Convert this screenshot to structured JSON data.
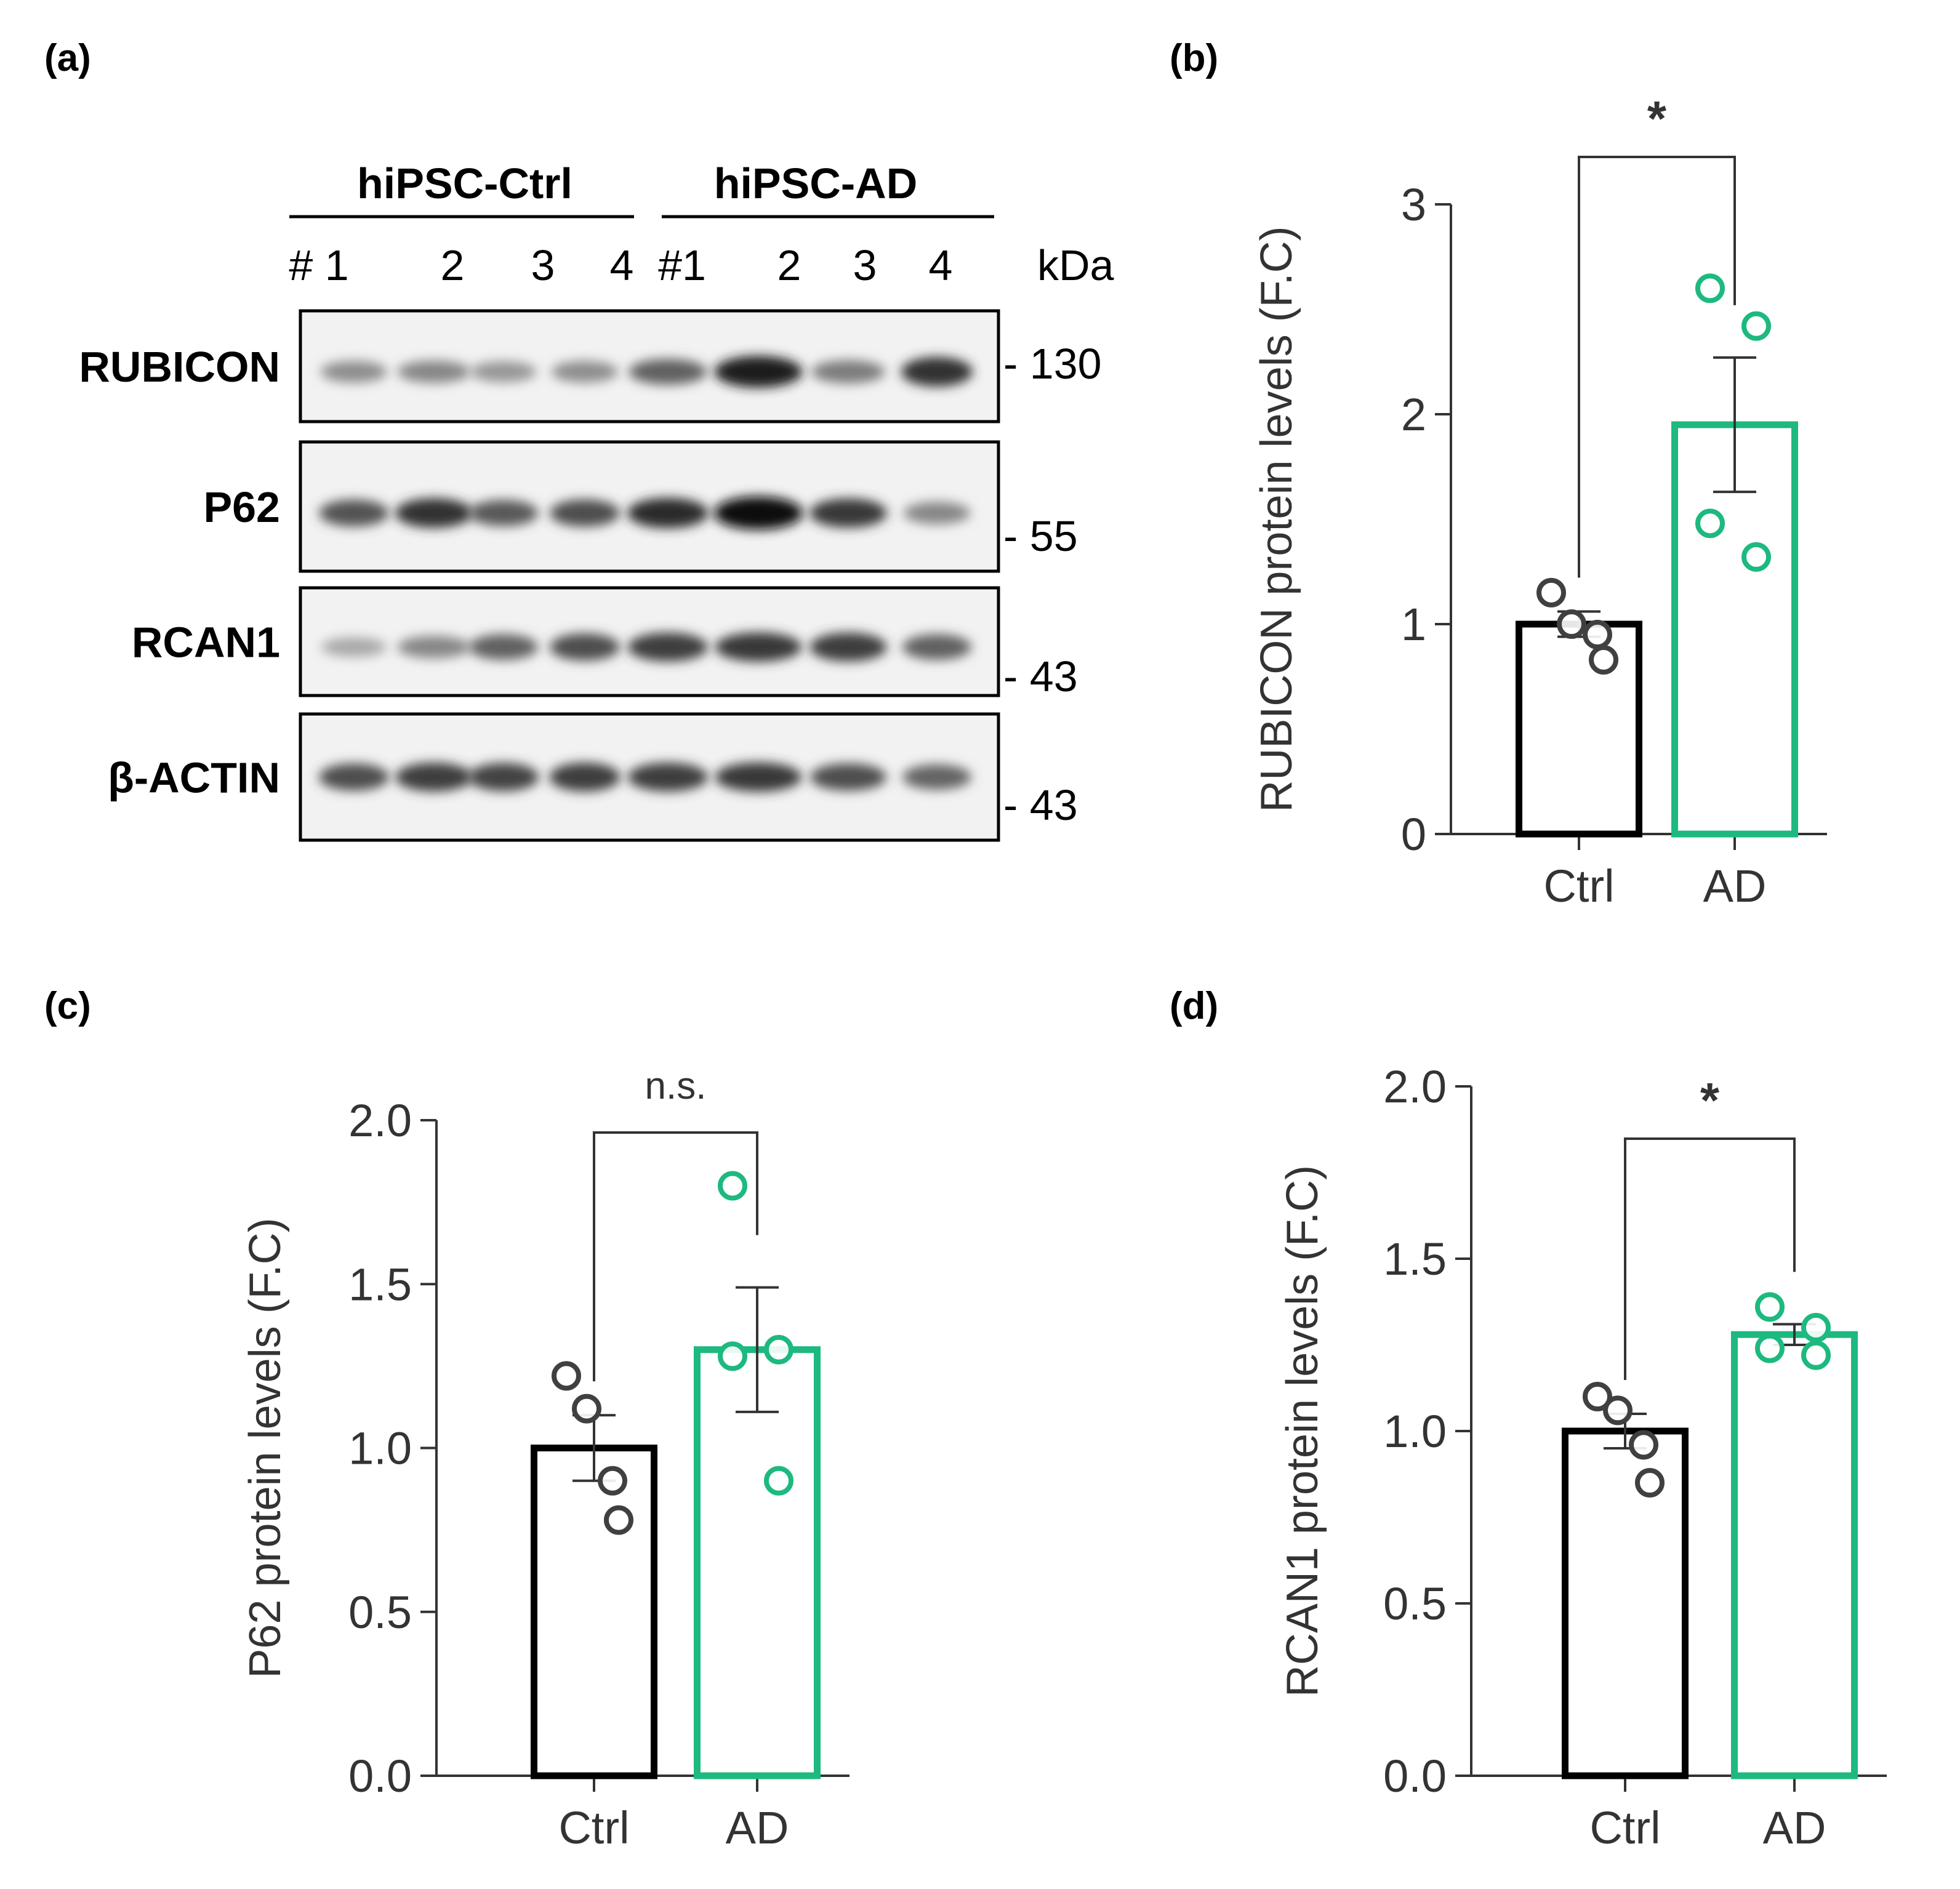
{
  "panel_labels": [
    "(a)",
    "(b)",
    "(c)",
    "(d)"
  ],
  "blot": {
    "groups": [
      "hiPSC-Ctrl",
      "hiPSC-AD"
    ],
    "lane_labels": [
      "# 1",
      "2",
      "3",
      "4",
      "#1",
      "2",
      "3",
      "4"
    ],
    "kda_label": "kDa",
    "proteins": [
      {
        "name": "RUBICON",
        "marker": "- 130",
        "intensity": [
          0.42,
          0.45,
          0.38,
          0.42,
          0.62,
          0.92,
          0.5,
          0.82
        ]
      },
      {
        "name": "P62",
        "marker": "- 55",
        "intensity": [
          0.68,
          0.82,
          0.65,
          0.7,
          0.85,
          1.0,
          0.8,
          0.45
        ]
      },
      {
        "name": "RCAN1",
        "marker": "- 43",
        "intensity": [
          0.3,
          0.45,
          0.62,
          0.7,
          0.78,
          0.8,
          0.78,
          0.62
        ]
      },
      {
        "name": "β-ACTIN",
        "marker": "- 43",
        "intensity": [
          0.7,
          0.78,
          0.75,
          0.78,
          0.78,
          0.8,
          0.7,
          0.6
        ]
      }
    ]
  },
  "colors": {
    "ctrl": "#000000",
    "ad": "#1db97f",
    "axis": "#333333",
    "dot_ctrl": "#404040"
  },
  "chart_data": [
    {
      "panel": "(b)",
      "type": "bar",
      "categories": [
        "Ctrl",
        "AD"
      ],
      "values": [
        1.0,
        1.95
      ],
      "sem": [
        0.06,
        0.32
      ],
      "points": [
        [
          1.15,
          1.0,
          0.95,
          0.83
        ],
        [
          2.6,
          2.42,
          1.48,
          1.32
        ]
      ],
      "ylabel": "RUBICON protein levels (F.C)",
      "ylim": [
        0,
        3
      ],
      "yticks": [
        "0",
        "1",
        "2",
        "3"
      ],
      "significance": "*"
    },
    {
      "panel": "(c)",
      "type": "bar",
      "categories": [
        "Ctrl",
        "AD"
      ],
      "values": [
        1.0,
        1.3
      ],
      "sem": [
        0.1,
        0.19
      ],
      "points": [
        [
          1.22,
          1.12,
          0.9,
          0.78
        ],
        [
          1.8,
          1.3,
          1.28,
          0.9
        ]
      ],
      "ylabel": "P62 protein levels (F.C)",
      "ylim": [
        0,
        2.0
      ],
      "yticks": [
        "0.0",
        "0.5",
        "1.0",
        "1.5",
        "2.0"
      ],
      "significance": "n.s."
    },
    {
      "panel": "(d)",
      "type": "bar",
      "categories": [
        "Ctrl",
        "AD"
      ],
      "values": [
        1.0,
        1.28
      ],
      "sem": [
        0.05,
        0.03
      ],
      "points": [
        [
          1.1,
          1.06,
          0.96,
          0.85
        ],
        [
          1.36,
          1.3,
          1.24,
          1.22
        ]
      ],
      "ylabel": "RCAN1 protein levels (F.C)",
      "ylim": [
        0,
        2.0
      ],
      "yticks": [
        "0.0",
        "0.5",
        "1.0",
        "1.5",
        "2.0"
      ],
      "significance": "*"
    }
  ]
}
